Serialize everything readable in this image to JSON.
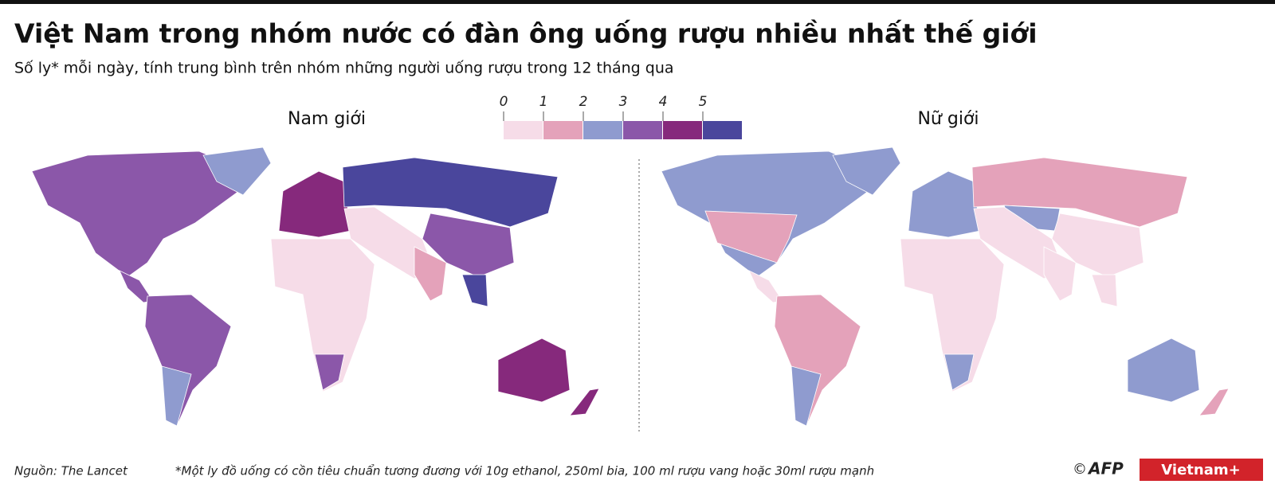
{
  "header": {
    "title": "Việt Nam trong nhóm nước có đàn ông uống rượu nhiều nhất thế giới",
    "subtitle": "Số ly* mỗi ngày, tính trung bình trên nhóm những người uống rượu trong 12 tháng qua"
  },
  "legend": {
    "ticks": [
      0,
      1,
      2,
      3,
      4,
      5
    ],
    "colors": [
      "#f6dce8",
      "#e4a2ba",
      "#8f9bcf",
      "#8b57a9",
      "#86297c",
      "#4a469c"
    ]
  },
  "maps": [
    {
      "title": "Nam giới"
    },
    {
      "title": "Nữ giới"
    }
  ],
  "footer": {
    "source": "Nguồn: The Lancet",
    "note": "*Một ly đồ uống có cồn tiêu chuẩn tương đương với 10g ethanol,  250ml bia, 100 ml rượu vang hoặc 30ml rượu mạnh",
    "copyright": "©",
    "afp": "AFP",
    "vietnamplus": "Vietnam+"
  }
}
